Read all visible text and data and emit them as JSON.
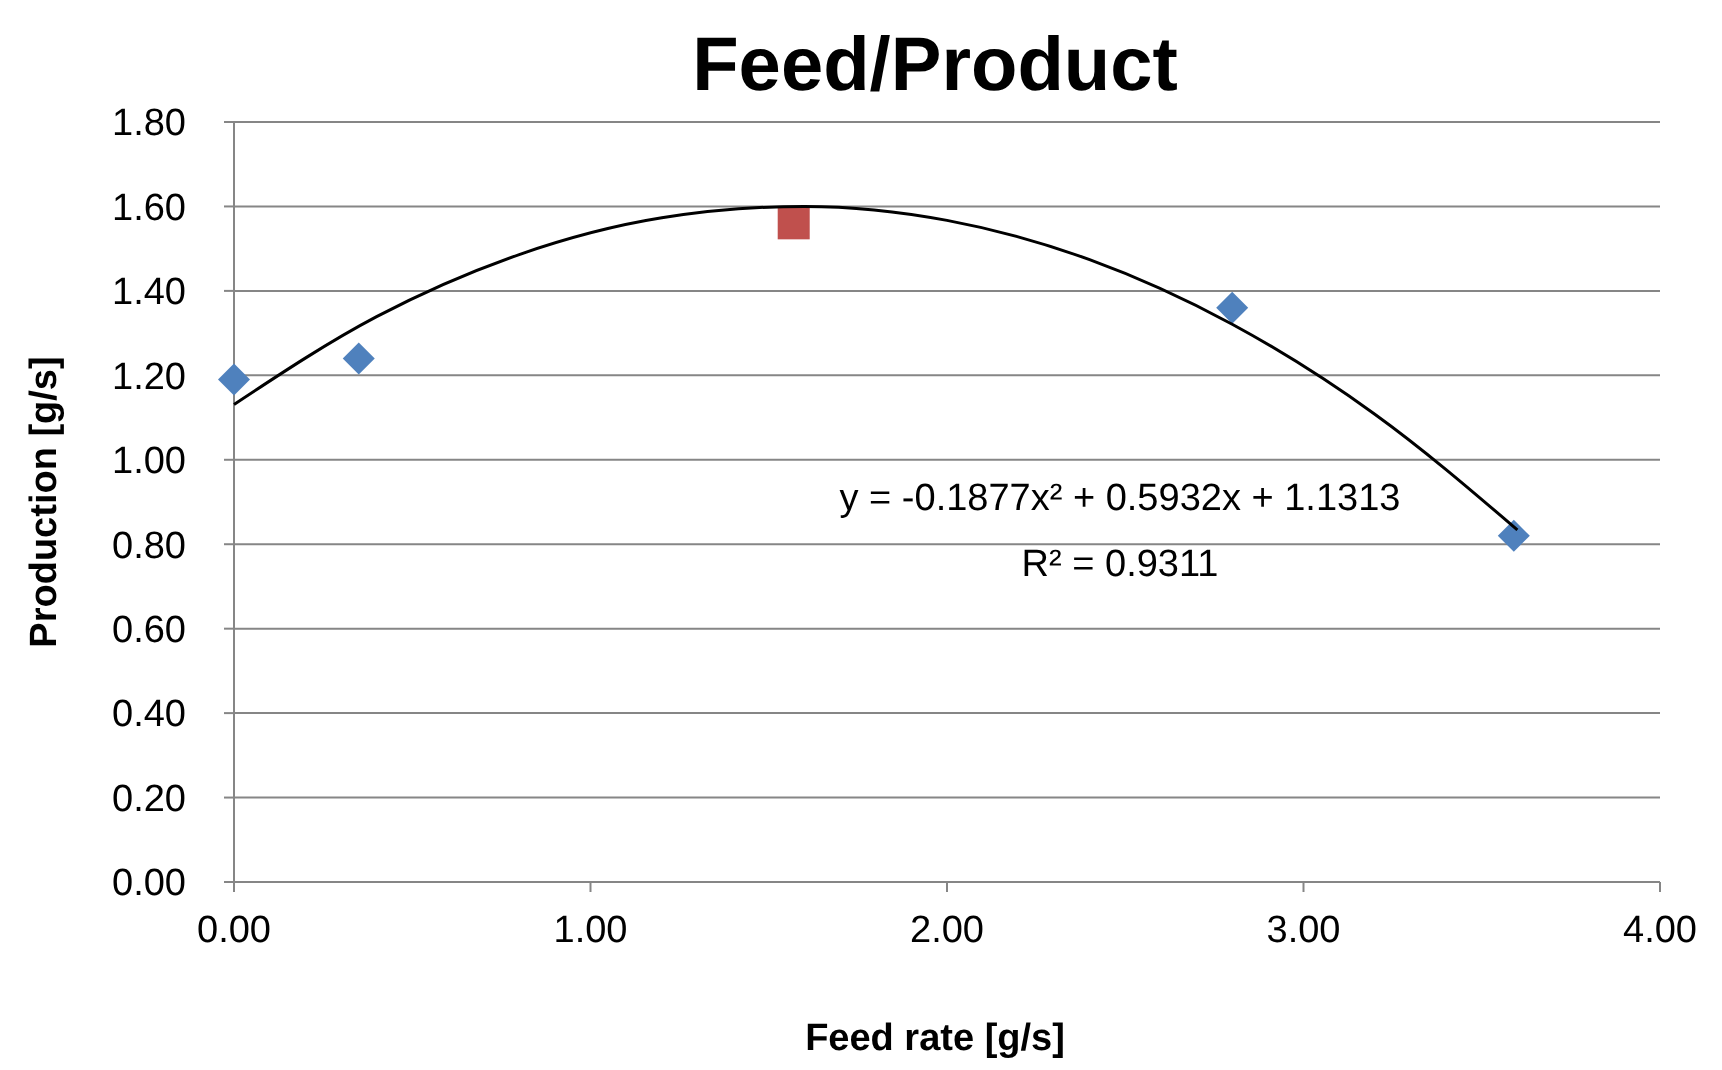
{
  "chart_data": {
    "type": "scatter",
    "title": "Feed/Product",
    "xlabel": "Feed rate [g/s]",
    "ylabel": "Production [g/s]",
    "xlim": [
      0,
      4
    ],
    "ylim": [
      0,
      1.8
    ],
    "xticks": [
      {
        "value": 0,
        "label": "0.00"
      },
      {
        "value": 1,
        "label": "1.00"
      },
      {
        "value": 2,
        "label": "2.00"
      },
      {
        "value": 3,
        "label": "3.00"
      },
      {
        "value": 4,
        "label": "4.00"
      }
    ],
    "yticks": [
      {
        "value": 0,
        "label": "0.00"
      },
      {
        "value": 0.2,
        "label": "0.20"
      },
      {
        "value": 0.4,
        "label": "0.40"
      },
      {
        "value": 0.6,
        "label": "0.60"
      },
      {
        "value": 0.8,
        "label": "0.80"
      },
      {
        "value": 1,
        "label": "1.00"
      },
      {
        "value": 1.2,
        "label": "1.20"
      },
      {
        "value": 1.4,
        "label": "1.40"
      },
      {
        "value": 1.6,
        "label": "1.60"
      },
      {
        "value": 1.8,
        "label": "1.80"
      }
    ],
    "grid": "y",
    "series": [
      {
        "color": "#4f81bd",
        "marker": "diamond",
        "x": [
          0,
          0.35,
          2.8,
          3.59
        ],
        "values": [
          1.19,
          1.24,
          1.36,
          0.82
        ]
      },
      {
        "color": "#c0504d",
        "marker": "square",
        "x": [
          1.57
        ],
        "values": [
          1.56
        ]
      },
      {
        "type": "line",
        "color": "#000000",
        "marker": "none",
        "line_style": "solid",
        "x": [
          0,
          0.4,
          0.8,
          1.2,
          1.6,
          2.0,
          2.4,
          2.8,
          3.2,
          3.6
        ],
        "values": [
          1.131,
          1.339,
          1.486,
          1.573,
          1.6,
          1.567,
          1.474,
          1.321,
          1.108,
          0.834
        ]
      }
    ],
    "annotations": [
      "y = -0.1877x² + 0.5932x + 1.1313",
      "R² = 0.9311"
    ]
  }
}
